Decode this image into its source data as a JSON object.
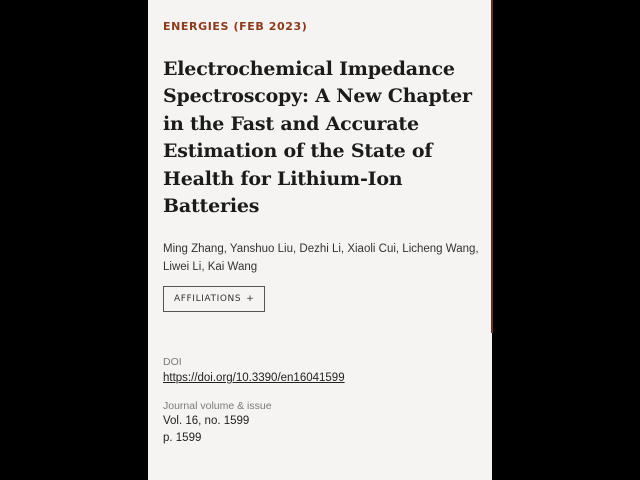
{
  "journal_line": "ENERGIES (FEB 2023)",
  "title": "Electrochemical Impedance Spectroscopy: A New Chapter in the Fast and Accurate Estimation of the State of Health for Lithium-Ion Batteries",
  "authors": "Ming Zhang, Yanshuo Liu, Dezhi Li, Xiaoli Cui, Licheng Wang, Liwei Li, Kai Wang",
  "affiliations_button": {
    "label": "AFFILIATIONS",
    "icon": "plus-icon",
    "icon_glyph": "+"
  },
  "doi": {
    "label": "DOI",
    "link": "https://doi.org/10.3390/en16041599"
  },
  "journal_issue": {
    "label": "Journal volume & issue",
    "volume": "Vol. 16, no. 1599",
    "pages": "p. 1599"
  },
  "colors": {
    "accent": "#8b3a1c",
    "background": "#000000",
    "card": "#f5f4f2"
  }
}
